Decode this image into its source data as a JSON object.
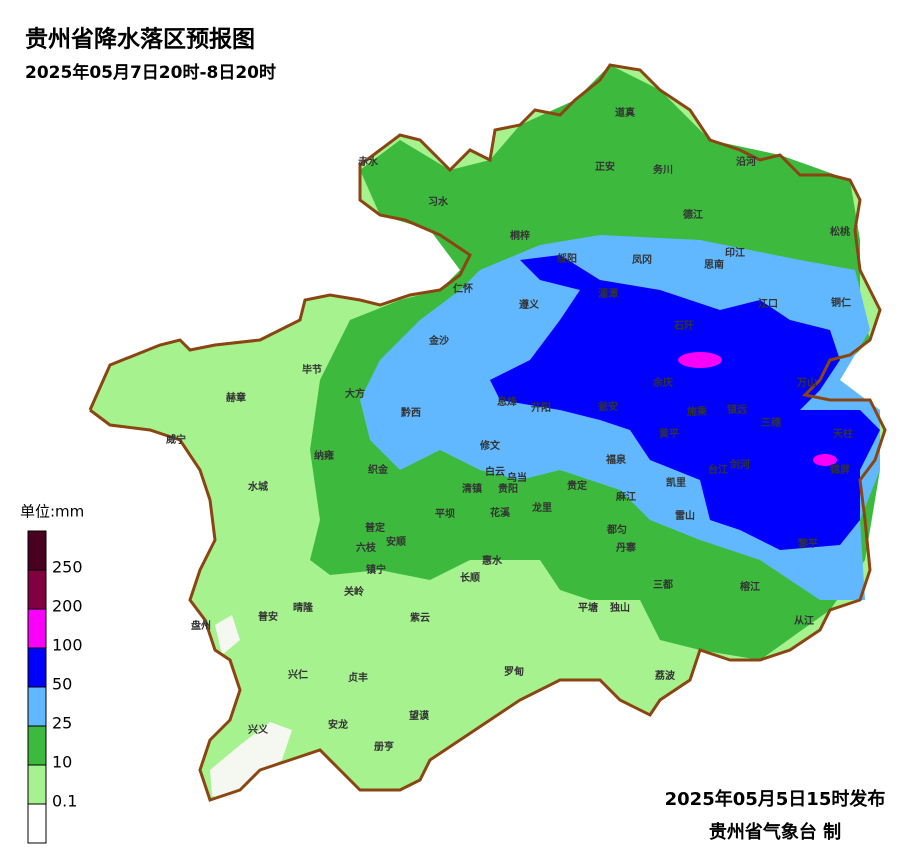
{
  "title": "贵州省降水落区预报图",
  "subtitle": "2025年05月7日20时-8日20时",
  "legend": {
    "unit": "单位:mm",
    "levels": [
      0.1,
      10,
      25,
      50,
      100,
      200,
      250
    ],
    "colors": [
      "#ffffff",
      "#a6f28f",
      "#3dba3d",
      "#61b8ff",
      "#0000fe",
      "#fa00fa",
      "#800040",
      "#4a0020"
    ]
  },
  "counties": [
    "赤水",
    "习水",
    "道真",
    "正安",
    "务川",
    "沿河",
    "桐梓",
    "德江",
    "松桃",
    "绥阳",
    "凤冈",
    "思南",
    "印江",
    "仁怀",
    "遵义",
    "湄潭",
    "江口",
    "铜仁",
    "石阡",
    "金沙",
    "毕节",
    "余庆",
    "万山",
    "赫章",
    "大方",
    "黔西",
    "息烽",
    "开阳",
    "瓮安",
    "施秉",
    "镇远",
    "三穗",
    "天柱",
    "威宁",
    "修文",
    "黄平",
    "纳雍",
    "织金",
    "白云",
    "福泉",
    "台江",
    "剑河",
    "锦屏",
    "乌当",
    "清镇",
    "贵阳",
    "凯里",
    "水城",
    "贵定",
    "麻江",
    "雷山",
    "平坝",
    "花溪",
    "龙里",
    "普定",
    "安顺",
    "都匀",
    "黎平",
    "六枝",
    "惠水",
    "丹寨",
    "镇宁",
    "长顺",
    "三都",
    "榕江",
    "关岭",
    "从江",
    "晴隆",
    "普安",
    "紫云",
    "平塘",
    "独山",
    "盘州",
    "罗甸",
    "荔波",
    "兴仁",
    "贞丰",
    "望谟",
    "兴义",
    "安龙",
    "册亨"
  ],
  "footer": {
    "issued": "2025年05月5日15时发布",
    "maker": "贵州省气象台 制"
  }
}
